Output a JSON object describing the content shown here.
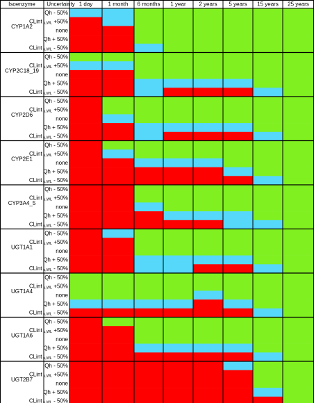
{
  "chart_data": {
    "type": "heatmap",
    "header": {
      "isozyme": "Isoenzyme",
      "uncertainty": "Uncertainty",
      "columns": [
        "1 day",
        "1 month",
        "6 months",
        "1 year",
        "2 years",
        "5 years",
        "15 years",
        "25 years"
      ]
    },
    "uncertainty_labels": [
      {
        "main": "Qh - 50%",
        "sub": "",
        "suffix": ""
      },
      {
        "main": "CLint",
        "sub": "u,WL",
        "suffix": " +50%"
      },
      {
        "main": "none",
        "sub": "",
        "suffix": ""
      },
      {
        "main": "Qh + 50%",
        "sub": "",
        "suffix": ""
      },
      {
        "main": "CLint",
        "sub": "u,WL",
        "suffix": " - 50%"
      }
    ],
    "colors": {
      "R": "#ff0000",
      "B": "#55d8fa",
      "G": "#80f020"
    },
    "groups": [
      {
        "name": "CYP1A2",
        "rows": [
          [
            "B",
            "B",
            "G",
            "G",
            "G",
            "G",
            "G",
            "G"
          ],
          [
            "R",
            "B",
            "G",
            "G",
            "G",
            "G",
            "G",
            "G"
          ],
          [
            "R",
            "R",
            "G",
            "G",
            "G",
            "G",
            "G",
            "G"
          ],
          [
            "R",
            "R",
            "G",
            "G",
            "G",
            "G",
            "G",
            "G"
          ],
          [
            "R",
            "R",
            "B",
            "G",
            "G",
            "G",
            "G",
            "G"
          ]
        ]
      },
      {
        "name": "CYP2C18_19",
        "rows": [
          [
            "G",
            "G",
            "G",
            "G",
            "G",
            "G",
            "G",
            "G"
          ],
          [
            "B",
            "B",
            "G",
            "G",
            "G",
            "G",
            "G",
            "G"
          ],
          [
            "R",
            "R",
            "G",
            "G",
            "G",
            "G",
            "G",
            "G"
          ],
          [
            "R",
            "R",
            "B",
            "B",
            "B",
            "B",
            "G",
            "G"
          ],
          [
            "R",
            "R",
            "B",
            "R",
            "R",
            "R",
            "B",
            "G"
          ]
        ]
      },
      {
        "name": "CYP2D6",
        "rows": [
          [
            "R",
            "G",
            "G",
            "G",
            "G",
            "G",
            "G",
            "G"
          ],
          [
            "R",
            "G",
            "G",
            "G",
            "G",
            "G",
            "G",
            "G"
          ],
          [
            "R",
            "B",
            "G",
            "G",
            "G",
            "G",
            "G",
            "G"
          ],
          [
            "R",
            "R",
            "B",
            "B",
            "B",
            "B",
            "G",
            "G"
          ],
          [
            "R",
            "R",
            "B",
            "R",
            "R",
            "R",
            "B",
            "G"
          ]
        ]
      },
      {
        "name": "CYP2E1",
        "rows": [
          [
            "R",
            "G",
            "G",
            "G",
            "G",
            "G",
            "G",
            "G"
          ],
          [
            "R",
            "B",
            "G",
            "G",
            "G",
            "G",
            "G",
            "G"
          ],
          [
            "R",
            "R",
            "B",
            "B",
            "B",
            "G",
            "G",
            "G"
          ],
          [
            "R",
            "R",
            "R",
            "R",
            "R",
            "B",
            "G",
            "G"
          ],
          [
            "R",
            "R",
            "R",
            "R",
            "R",
            "R",
            "B",
            "G"
          ]
        ]
      },
      {
        "name": "CYP3A4_5",
        "rows": [
          [
            "R",
            "R",
            "G",
            "G",
            "G",
            "G",
            "G",
            "G"
          ],
          [
            "R",
            "R",
            "G",
            "G",
            "G",
            "G",
            "G",
            "G"
          ],
          [
            "R",
            "R",
            "B",
            "G",
            "G",
            "G",
            "G",
            "G"
          ],
          [
            "R",
            "R",
            "R",
            "B",
            "B",
            "B",
            "G",
            "G"
          ],
          [
            "R",
            "R",
            "R",
            "R",
            "R",
            "B",
            "B",
            "G"
          ]
        ]
      },
      {
        "name": "UGT1A1",
        "rows": [
          [
            "R",
            "B",
            "G",
            "G",
            "G",
            "G",
            "G",
            "G"
          ],
          [
            "R",
            "R",
            "G",
            "G",
            "G",
            "G",
            "G",
            "G"
          ],
          [
            "R",
            "R",
            "G",
            "G",
            "G",
            "G",
            "G",
            "G"
          ],
          [
            "R",
            "R",
            "B",
            "B",
            "B",
            "B",
            "G",
            "G"
          ],
          [
            "R",
            "R",
            "B",
            "B",
            "R",
            "R",
            "B",
            "G"
          ]
        ]
      },
      {
        "name": "UGT1A4",
        "rows": [
          [
            "G",
            "G",
            "G",
            "G",
            "G",
            "G",
            "G",
            "G"
          ],
          [
            "G",
            "G",
            "G",
            "G",
            "G",
            "G",
            "G",
            "G"
          ],
          [
            "G",
            "G",
            "G",
            "G",
            "B",
            "G",
            "G",
            "G"
          ],
          [
            "B",
            "B",
            "B",
            "B",
            "R",
            "B",
            "G",
            "G"
          ],
          [
            "R",
            "R",
            "R",
            "R",
            "R",
            "R",
            "B",
            "G"
          ]
        ]
      },
      {
        "name": "UGT1A6",
        "rows": [
          [
            "R",
            "G",
            "G",
            "G",
            "G",
            "G",
            "G",
            "G"
          ],
          [
            "R",
            "R",
            "G",
            "G",
            "G",
            "G",
            "G",
            "G"
          ],
          [
            "R",
            "R",
            "G",
            "G",
            "G",
            "G",
            "G",
            "G"
          ],
          [
            "R",
            "R",
            "B",
            "B",
            "B",
            "B",
            "G",
            "G"
          ],
          [
            "R",
            "R",
            "R",
            "R",
            "R",
            "R",
            "B",
            "G"
          ]
        ]
      },
      {
        "name": "UGT2B7",
        "rows": [
          [
            "R",
            "R",
            "R",
            "R",
            "R",
            "B",
            "G",
            "G"
          ],
          [
            "R",
            "R",
            "R",
            "R",
            "R",
            "R",
            "G",
            "G"
          ],
          [
            "R",
            "R",
            "R",
            "R",
            "R",
            "R",
            "G",
            "G"
          ],
          [
            "R",
            "R",
            "R",
            "R",
            "R",
            "R",
            "B",
            "G"
          ],
          [
            "R",
            "R",
            "R",
            "R",
            "R",
            "R",
            "R",
            "G"
          ]
        ]
      }
    ]
  }
}
